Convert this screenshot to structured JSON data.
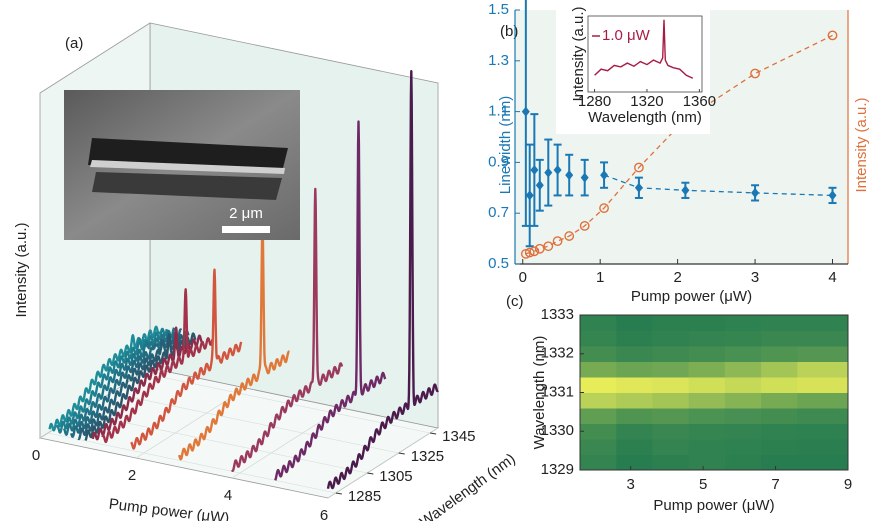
{
  "chart_data": [
    {
      "type": "waterfall",
      "label": "(a)",
      "xlabel": "Pump power (μW)",
      "ylabel": "Intensity (a.u.)",
      "zlabel": "Wavelength (nm)",
      "xlim": [
        0,
        6
      ],
      "xticks": [
        0,
        2,
        4,
        6
      ],
      "ylim": [
        0,
        1.05
      ],
      "zlim": [
        1280,
        1350
      ],
      "zticks": [
        1285,
        1305,
        1325,
        1345
      ],
      "x": [
        0.2,
        0.35,
        0.5,
        0.65,
        0.8,
        0.95,
        1.1,
        1.3,
        1.9,
        2.9,
        4.0,
        4.9,
        6.0
      ],
      "values": [
        0.02,
        0.02,
        0.03,
        0.03,
        0.04,
        0.05,
        0.07,
        0.2,
        0.29,
        0.47,
        0.6,
        0.82,
        1.0
      ],
      "colors": [
        "#1f8c99",
        "#1e7f90",
        "#207488",
        "#236a80",
        "#275f76",
        "#2b566c",
        "#8c2b4a",
        "#a3334a",
        "#d2563f",
        "#e0783a",
        "#9b3a5e",
        "#6e2a66",
        "#4a1b4c"
      ],
      "annotation": "2 μm"
    },
    {
      "type": "scatter",
      "label": "(b)",
      "xlabel": "Pump power (μW)",
      "ylabel": "Linewidth (nm)",
      "y2label": "Intensity (a.u.)",
      "xlim": [
        -0.1,
        4.2
      ],
      "xticks": [
        0,
        1,
        2,
        3,
        4
      ],
      "ylim": [
        0.5,
        1.5
      ],
      "yticks": [
        0.5,
        0.7,
        0.9,
        1.1,
        1.3,
        1.5
      ],
      "y2lim": [
        0,
        1
      ],
      "x": [
        0.04,
        0.09,
        0.15,
        0.22,
        0.33,
        0.45,
        0.6,
        0.8,
        1.05,
        1.5,
        2.1,
        3.0,
        4.0
      ],
      "series": [
        {
          "name": "Linewidth",
          "color": "#1a78b4",
          "marker": "diamond",
          "values": [
            1.1,
            0.77,
            0.87,
            0.81,
            0.86,
            0.87,
            0.85,
            0.84,
            0.85,
            0.8,
            0.79,
            0.78,
            0.77
          ],
          "errors": [
            0.45,
            0.2,
            0.22,
            0.1,
            0.13,
            0.1,
            0.08,
            0.07,
            0.05,
            0.04,
            0.03,
            0.03,
            0.03
          ]
        },
        {
          "name": "Intensity",
          "color": "#e0703a",
          "marker": "circle",
          "axis": "y2",
          "values": [
            0.04,
            0.045,
            0.05,
            0.06,
            0.07,
            0.09,
            0.11,
            0.15,
            0.22,
            0.38,
            0.57,
            0.75,
            0.9
          ]
        }
      ],
      "background": "#eef5f1"
    },
    {
      "type": "line",
      "xlabel": "Wavelength (nm)",
      "ylabel": "Intensity (a.u.)",
      "xlim": [
        1275,
        1362
      ],
      "xticks": [
        1280,
        1320,
        1360
      ],
      "ylim": [
        0,
        1
      ],
      "x": [
        1280,
        1285,
        1290,
        1295,
        1300,
        1305,
        1310,
        1315,
        1320,
        1325,
        1330,
        1332,
        1333,
        1334,
        1336,
        1340,
        1345,
        1350,
        1355
      ],
      "series": [
        {
          "name": "1.0 μW",
          "color": "#a81c44",
          "values": [
            0.22,
            0.3,
            0.28,
            0.35,
            0.33,
            0.38,
            0.34,
            0.4,
            0.36,
            0.42,
            0.38,
            0.45,
            0.95,
            0.42,
            0.35,
            0.32,
            0.3,
            0.22,
            0.18
          ]
        }
      ]
    },
    {
      "type": "heatmap",
      "label": "(c)",
      "xlabel": "Pump power (μW)",
      "ylabel": "Wavelength (nm)",
      "xlim": [
        1.6,
        9
      ],
      "xticks": [
        3,
        5,
        7,
        9
      ],
      "ylim": [
        1329,
        1333
      ],
      "yticks": [
        1329,
        1330,
        1331,
        1332,
        1333
      ],
      "x_edges": [
        1.6,
        2.6,
        3.6,
        4.6,
        5.6,
        6.6,
        7.6,
        9
      ],
      "y_edges": [
        1329,
        1329.4,
        1329.8,
        1330.2,
        1330.6,
        1331,
        1331.4,
        1331.8,
        1332.2,
        1332.6,
        1333
      ],
      "zlim": [
        0,
        1
      ],
      "colormap": [
        "#11704f",
        "#f2f25a"
      ],
      "z": [
        [
          0.15,
          0.1,
          0.12,
          0.14,
          0.12,
          0.1,
          0.1
        ],
        [
          0.18,
          0.12,
          0.15,
          0.14,
          0.13,
          0.12,
          0.11
        ],
        [
          0.22,
          0.15,
          0.18,
          0.16,
          0.15,
          0.14,
          0.13
        ],
        [
          0.35,
          0.28,
          0.3,
          0.26,
          0.24,
          0.22,
          0.2
        ],
        [
          0.75,
          0.7,
          0.65,
          0.58,
          0.52,
          0.45,
          0.4
        ],
        [
          0.95,
          0.92,
          0.9,
          0.85,
          0.8,
          0.85,
          0.88
        ],
        [
          0.45,
          0.4,
          0.42,
          0.48,
          0.55,
          0.65,
          0.75
        ],
        [
          0.22,
          0.18,
          0.2,
          0.22,
          0.25,
          0.28,
          0.3
        ],
        [
          0.16,
          0.12,
          0.14,
          0.15,
          0.16,
          0.18,
          0.18
        ],
        [
          0.14,
          0.1,
          0.12,
          0.12,
          0.13,
          0.14,
          0.14
        ]
      ]
    }
  ]
}
